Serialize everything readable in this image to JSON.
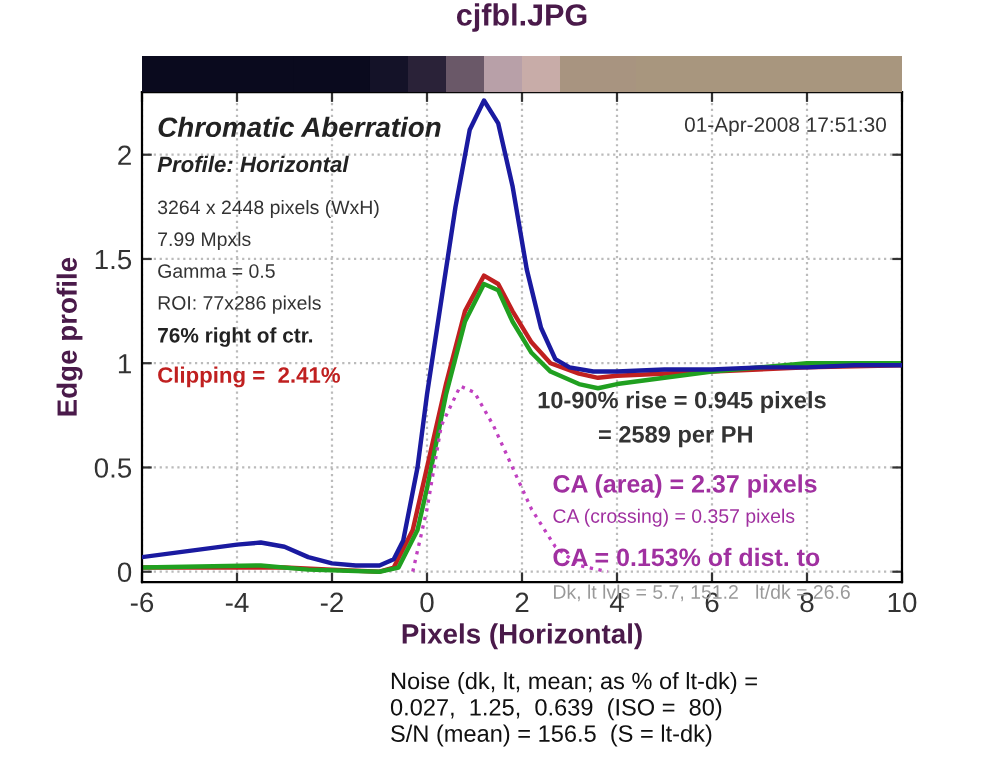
{
  "chart_data": {
    "type": "line",
    "title": "cjfbl.JPG",
    "xlabel": "Pixels (Horizontal)",
    "ylabel": "Edge profile",
    "xlim": [
      -6,
      10
    ],
    "xticks": [
      -6,
      -4,
      -2,
      0,
      2,
      4,
      6,
      8,
      10
    ],
    "ylim": [
      -0.05,
      2.3
    ],
    "yticks": [
      0,
      0.5,
      1,
      1.5,
      2
    ],
    "grid": true,
    "series": [
      {
        "color": "#1a1aa0",
        "x": [
          -6,
          -5,
          -4,
          -3.5,
          -3,
          -2.5,
          -2,
          -1.5,
          -1,
          -0.7,
          -0.5,
          -0.2,
          0,
          0.3,
          0.6,
          0.9,
          1.2,
          1.5,
          1.8,
          2.1,
          2.4,
          2.7,
          3,
          3.5,
          4,
          5,
          6,
          7,
          8,
          9,
          10
        ],
        "values": [
          0.07,
          0.1,
          0.13,
          0.14,
          0.12,
          0.07,
          0.04,
          0.03,
          0.03,
          0.06,
          0.15,
          0.5,
          0.85,
          1.3,
          1.75,
          2.12,
          2.26,
          2.15,
          1.85,
          1.45,
          1.17,
          1.02,
          0.98,
          0.96,
          0.96,
          0.97,
          0.97,
          0.98,
          0.98,
          0.99,
          0.99
        ]
      },
      {
        "color": "#c02020",
        "x": [
          -6,
          -3,
          -2,
          -1,
          -0.7,
          -0.3,
          0,
          0.4,
          0.8,
          1.2,
          1.5,
          1.8,
          2.2,
          2.6,
          3.2,
          3.6,
          4,
          6,
          8,
          10
        ],
        "values": [
          0.02,
          0.02,
          0.01,
          0.0,
          0.02,
          0.2,
          0.5,
          0.9,
          1.25,
          1.42,
          1.38,
          1.25,
          1.1,
          1.0,
          0.95,
          0.93,
          0.94,
          0.96,
          0.98,
          0.99
        ]
      },
      {
        "color": "#20a020",
        "x": [
          -6,
          -3.5,
          -2.5,
          -1,
          -0.6,
          -0.2,
          0,
          0.4,
          0.8,
          1.2,
          1.5,
          1.8,
          2.2,
          2.6,
          3.2,
          3.6,
          4,
          6,
          8,
          10
        ],
        "values": [
          0.02,
          0.03,
          0.01,
          0.0,
          0.02,
          0.2,
          0.4,
          0.85,
          1.2,
          1.38,
          1.35,
          1.2,
          1.05,
          0.96,
          0.9,
          0.88,
          0.9,
          0.96,
          1.0,
          1.0
        ]
      },
      {
        "color": "#c040c0",
        "line_style": "dotted",
        "x": [
          -0.3,
          0,
          0.3,
          0.7,
          1.0,
          1.4,
          1.8,
          2.2,
          2.7,
          3.2,
          3.8
        ],
        "values": [
          0.0,
          0.3,
          0.7,
          0.89,
          0.86,
          0.7,
          0.5,
          0.3,
          0.12,
          0.03,
          0.0
        ]
      }
    ],
    "annotations": [
      "Chromatic Aberration",
      "Profile: Horizontal",
      "01-Apr-2008 17:51:30",
      "3264 x 2448 pixels (WxH)",
      "7.99 Mpxls",
      "Gamma = 0.5",
      "ROI: 77x286 pixels",
      "76% right of ctr.",
      "Clipping =  2.41%",
      "10-90% rise = 0.945 pixels",
      "= 2589 per PH",
      "CA (area) = 2.37 pixels",
      "CA (crossing) = 0.357 pixels",
      "CA = 0.153% of dist. to",
      "Dk, lt lvls = 5.7, 151.2   lt/dk = 26.6",
      "Noise (dk, lt, mean; as % of lt-dk) =\n0.027,  1.25,  0.639  (ISO =  80)\nS/N (mean) = 156.5  (S = lt-dk)"
    ]
  }
}
